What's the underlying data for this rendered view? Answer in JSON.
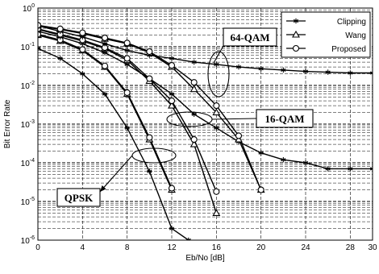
{
  "chart_data": {
    "type": "line",
    "title": "",
    "xlabel": "Eb/No [dB]",
    "ylabel": "Bit Error Rate",
    "xlim": [
      0,
      30
    ],
    "ylim_log10": [
      -6,
      0
    ],
    "y_scale": "log",
    "grid": true,
    "x_ticks": [
      0,
      4,
      8,
      12,
      16,
      20,
      24,
      28,
      30
    ],
    "y_ticks": [
      {
        "base": "10",
        "exp": "0"
      },
      {
        "base": "10",
        "exp": "-1"
      },
      {
        "base": "10",
        "exp": "-2"
      },
      {
        "base": "10",
        "exp": "-3"
      },
      {
        "base": "10",
        "exp": "-4"
      },
      {
        "base": "10",
        "exp": "-5"
      },
      {
        "base": "10",
        "exp": "-6"
      }
    ],
    "legend": {
      "placement": "top-right",
      "entries": [
        {
          "name": "Clipping",
          "marker": "star"
        },
        {
          "name": "Wang",
          "marker": "triangle"
        },
        {
          "name": "Proposed",
          "marker": "circle"
        }
      ]
    },
    "series": [
      {
        "name": "Clipping",
        "group": "QPSK",
        "marker": "star",
        "x": [
          0,
          2,
          4,
          6,
          8,
          10,
          12,
          13.5
        ],
        "y": [
          0.09,
          0.05,
          0.02,
          0.006,
          0.0008,
          6e-05,
          2e-06,
          1e-06
        ]
      },
      {
        "name": "Wang",
        "group": "QPSK",
        "marker": "triangle",
        "x": [
          0,
          2,
          4,
          6,
          8,
          10,
          12
        ],
        "y": [
          0.2,
          0.14,
          0.08,
          0.03,
          0.006,
          0.0004,
          2e-05
        ]
      },
      {
        "name": "Proposed",
        "group": "QPSK",
        "marker": "circle",
        "x": [
          0,
          2,
          4,
          6,
          8,
          10,
          12
        ],
        "y": [
          0.21,
          0.15,
          0.085,
          0.032,
          0.0065,
          0.00045,
          2.2e-05
        ]
      },
      {
        "name": "Clipping",
        "group": "16-QAM",
        "marker": "star",
        "x": [
          0,
          2,
          4,
          6,
          8,
          10,
          12,
          14,
          16,
          18,
          20,
          22,
          24,
          26,
          28,
          30
        ],
        "y": [
          0.25,
          0.18,
          0.12,
          0.07,
          0.035,
          0.015,
          0.006,
          0.0018,
          0.0008,
          0.00035,
          0.00018,
          0.00012,
          0.0001,
          7e-05,
          7e-05,
          7e-05
        ]
      },
      {
        "name": "Wang",
        "group": "16-QAM",
        "marker": "triangle",
        "x": [
          0,
          2,
          4,
          6,
          8,
          10,
          12,
          14,
          16
        ],
        "y": [
          0.28,
          0.2,
          0.14,
          0.09,
          0.045,
          0.013,
          0.003,
          0.0003,
          5e-06
        ]
      },
      {
        "name": "Proposed",
        "group": "16-QAM",
        "marker": "circle",
        "x": [
          0,
          2,
          4,
          6,
          8,
          10,
          12,
          14,
          16
        ],
        "y": [
          0.29,
          0.21,
          0.15,
          0.095,
          0.05,
          0.015,
          0.004,
          0.0004,
          1.8e-05
        ]
      },
      {
        "name": "Clipping",
        "group": "64-QAM",
        "marker": "star",
        "x": [
          0,
          2,
          4,
          6,
          8,
          10,
          12,
          14,
          16,
          18,
          20,
          22,
          24,
          26,
          28,
          30
        ],
        "y": [
          0.35,
          0.25,
          0.18,
          0.12,
          0.08,
          0.06,
          0.05,
          0.04,
          0.035,
          0.03,
          0.027,
          0.025,
          0.023,
          0.022,
          0.021,
          0.021
        ]
      },
      {
        "name": "Wang",
        "group": "64-QAM",
        "marker": "triangle",
        "x": [
          0,
          2,
          4,
          6,
          8,
          10,
          12,
          14,
          16,
          18,
          20
        ],
        "y": [
          0.35,
          0.28,
          0.22,
          0.16,
          0.12,
          0.07,
          0.03,
          0.008,
          0.002,
          0.0004,
          2e-05
        ]
      },
      {
        "name": "Proposed",
        "group": "64-QAM",
        "marker": "circle",
        "x": [
          0,
          2,
          4,
          6,
          8,
          10,
          12,
          14,
          16,
          18,
          20
        ],
        "y": [
          0.36,
          0.29,
          0.23,
          0.17,
          0.125,
          0.075,
          0.033,
          0.012,
          0.003,
          0.0005,
          2e-05
        ]
      }
    ],
    "annotations": [
      {
        "text": "64-QAM",
        "points_to": [
          14,
          0.01
        ]
      },
      {
        "text": "16-QAM",
        "points_to": [
          14,
          0.002
        ]
      },
      {
        "text": "QPSK",
        "points_to": [
          10,
          7e-05
        ]
      }
    ]
  }
}
